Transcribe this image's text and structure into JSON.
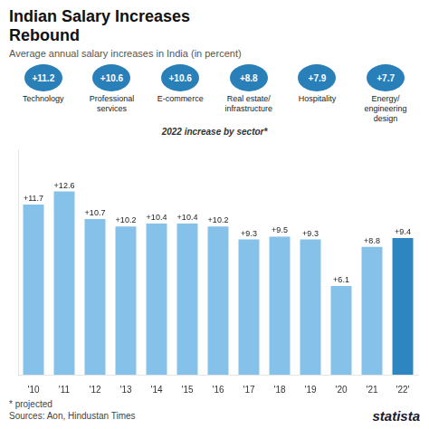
{
  "chart_data": {
    "type": "bar",
    "title": [
      "Indian Salary Increases",
      "Rebound"
    ],
    "subtitle": "Average annual salary increases in India (in percent)",
    "categories": [
      "'10",
      "'11",
      "'12",
      "'13",
      "'14",
      "'15",
      "'16",
      "'17",
      "'18",
      "'19",
      "'20",
      "'21",
      "'22'"
    ],
    "values": [
      11.7,
      12.6,
      10.7,
      10.2,
      10.4,
      10.4,
      10.2,
      9.3,
      9.5,
      9.3,
      6.1,
      8.8,
      9.4
    ],
    "value_labels": [
      "+11.7",
      "+12.6",
      "+10.7",
      "+10.2",
      "+10.4",
      "+10.4",
      "+10.2",
      "+9.3",
      "+9.5",
      "+9.3",
      "+6.1",
      "+8.8",
      "+9.4"
    ],
    "colors": [
      "#85C1E9",
      "#85C1E9",
      "#85C1E9",
      "#85C1E9",
      "#85C1E9",
      "#85C1E9",
      "#85C1E9",
      "#85C1E9",
      "#85C1E9",
      "#85C1E9",
      "#85C1E9",
      "#85C1E9",
      "#2E86C1"
    ],
    "data_labels": true,
    "ylim": [
      0,
      15.5
    ],
    "tick_labels": "x",
    "grid": false,
    "annotations": {
      "header": "2022 increase by sector*",
      "color": "#2980B9",
      "items": [
        {
          "text": "Technology",
          "label": "+11.2"
        },
        {
          "text": "Professional\nservices",
          "label": "+10.6"
        },
        {
          "text": "E-commerce",
          "label": "+10.6"
        },
        {
          "text": "Real estate/\ninfrastructure",
          "label": "+8.8"
        },
        {
          "text": "Hospitality",
          "label": "+7.9"
        },
        {
          "text": "Energy/\nengineering\ndesign",
          "label": "+7.7"
        }
      ]
    },
    "notes": [
      "* projected",
      "Sources: Aon, Hindustan Times"
    ],
    "credit": "statista"
  }
}
